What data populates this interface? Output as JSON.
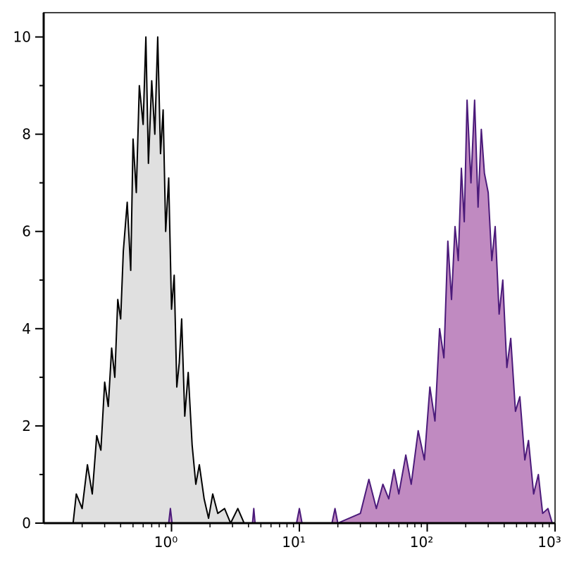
{
  "chart_data": {
    "type": "histogram-line",
    "xscale": "log",
    "xlim": [
      0.1,
      1000
    ],
    "ylim": [
      0,
      10.5
    ],
    "xticks": [
      {
        "value": 1,
        "label": "10⁰"
      },
      {
        "value": 10,
        "label": "10¹"
      },
      {
        "value": 100,
        "label": "10²"
      },
      {
        "value": 1000,
        "label": "10³"
      }
    ],
    "xminorticks": [
      0.2,
      0.3,
      0.4,
      0.5,
      0.6,
      0.7,
      0.8,
      0.9,
      2,
      3,
      4,
      5,
      6,
      7,
      8,
      9,
      20,
      30,
      40,
      50,
      60,
      70,
      80,
      90,
      200,
      300,
      400,
      500,
      600,
      700,
      800,
      900
    ],
    "yticks": [
      0,
      2,
      4,
      6,
      8,
      10
    ],
    "yminorticks": [
      1,
      3,
      5,
      7,
      9
    ],
    "series": [
      {
        "color": "#000000",
        "fill": "#e0e0e0",
        "x": [
          0.17,
          0.18,
          0.2,
          0.22,
          0.24,
          0.26,
          0.28,
          0.3,
          0.32,
          0.34,
          0.36,
          0.38,
          0.4,
          0.42,
          0.45,
          0.48,
          0.5,
          0.53,
          0.56,
          0.6,
          0.63,
          0.66,
          0.7,
          0.74,
          0.78,
          0.82,
          0.86,
          0.9,
          0.95,
          1.0,
          1.05,
          1.1,
          1.15,
          1.2,
          1.27,
          1.35,
          1.45,
          1.55,
          1.65,
          1.8,
          1.95,
          2.1,
          2.3,
          2.6,
          2.9,
          3.3,
          3.7,
          4.4
        ],
        "values": [
          0,
          0.6,
          0.3,
          1.2,
          0.6,
          1.8,
          1.5,
          2.9,
          2.4,
          3.6,
          3.0,
          4.6,
          4.2,
          5.6,
          6.6,
          5.2,
          7.9,
          6.8,
          9.0,
          8.2,
          10.0,
          7.4,
          9.1,
          8.0,
          10.0,
          7.6,
          8.5,
          6.0,
          7.1,
          4.4,
          5.1,
          2.8,
          3.3,
          4.2,
          2.2,
          3.1,
          1.6,
          0.8,
          1.2,
          0.5,
          0.1,
          0.6,
          0.2,
          0.3,
          0,
          0.3,
          0,
          0
        ]
      },
      {
        "color": "#4b1a7a",
        "fill": "#c08ac1",
        "x": [
          0.95,
          0.98,
          1.01,
          4.3,
          4.4,
          4.5,
          9.5,
          10,
          10.5,
          18,
          19,
          20,
          30,
          35,
          40,
          45,
          50,
          55,
          60,
          68,
          75,
          85,
          95,
          105,
          115,
          125,
          135,
          145,
          155,
          165,
          175,
          185,
          195,
          205,
          220,
          235,
          250,
          265,
          280,
          300,
          320,
          340,
          365,
          390,
          420,
          450,
          490,
          530,
          580,
          620,
          680,
          740,
          800,
          880,
          950
        ],
        "values": [
          0,
          0.3,
          0,
          0,
          0.3,
          0,
          0,
          0.3,
          0,
          0,
          0.3,
          0,
          0.2,
          0.9,
          0.3,
          0.8,
          0.5,
          1.1,
          0.6,
          1.4,
          0.8,
          1.9,
          1.3,
          2.8,
          2.1,
          4.0,
          3.4,
          5.8,
          4.6,
          6.1,
          5.4,
          7.3,
          6.2,
          8.7,
          7.0,
          8.7,
          6.5,
          8.1,
          7.2,
          6.8,
          5.4,
          6.1,
          4.3,
          5.0,
          3.2,
          3.8,
          2.3,
          2.6,
          1.3,
          1.7,
          0.6,
          1.0,
          0.2,
          0.3,
          0
        ]
      }
    ]
  }
}
